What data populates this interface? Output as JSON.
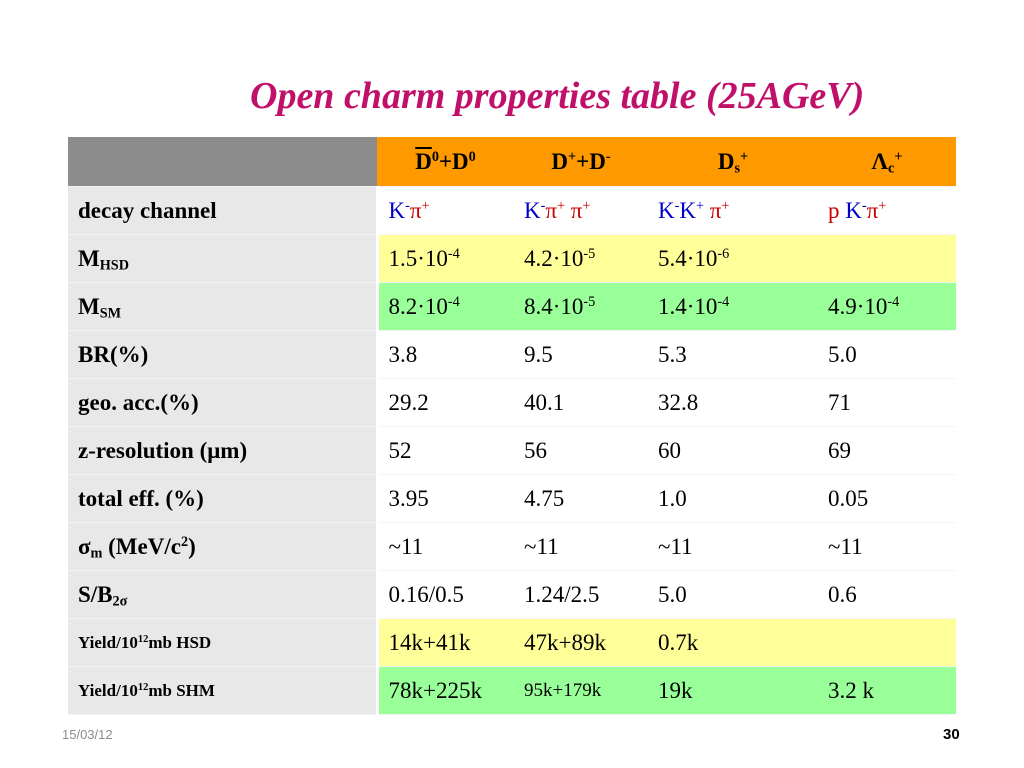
{
  "title": "Open charm properties table (25AGeV)",
  "columns": {
    "d0": {
      "a": "D",
      "sup1": "0",
      "plus": "+D",
      "sup2": "0"
    },
    "dpm": {
      "a": "D",
      "sup1": "+",
      "plus": "+D",
      "sup2": "-"
    },
    "ds": {
      "a": "D",
      "sub": "s",
      "sup": "+"
    },
    "lc": {
      "a": "Λ",
      "sub": "c",
      "sup": "+"
    }
  },
  "rows": {
    "decay": {
      "label": "decay channel",
      "d0": {
        "k": "K",
        "ksup": "-",
        "pi": "π",
        "pisup": "+"
      },
      "dpm": {
        "k": "K",
        "ksup": "-",
        "pi": "π",
        "pisup": "+",
        "pi2": "π",
        "pi2sup": "+"
      },
      "ds": {
        "k": "K",
        "ksup": "-",
        "k2": "K",
        "k2sup": "+",
        "pi": "π",
        "pisup": "+"
      },
      "lc": {
        "p": "p",
        "k": "K",
        "ksup": "-",
        "pi": "π",
        "pisup": "+"
      }
    },
    "mhsd": {
      "label": "M",
      "label_sub": "HSD",
      "d0": {
        "m": "1.5·10",
        "e": "-4"
      },
      "dpm": {
        "m": "4.2·10",
        "e": "-5"
      },
      "ds": {
        "m": "5.4·10",
        "e": "-6"
      }
    },
    "msm": {
      "label": "M",
      "label_sub": "SM",
      "d0": {
        "m": "8.2·10",
        "e": "-4"
      },
      "dpm": {
        "m": "8.4·10",
        "e": "-5"
      },
      "ds": {
        "m": "1.4·10",
        "e": "-4"
      },
      "lc": {
        "m": "4.9·10",
        "e": "-4"
      }
    },
    "br": {
      "label": "BR(%)",
      "d0": "3.8",
      "dpm": "9.5",
      "ds": "5.3",
      "lc": "5.0"
    },
    "geo": {
      "label": "geo. acc.(%)",
      "d0": "29.2",
      "dpm": "40.1",
      "ds": "32.8",
      "lc": "71"
    },
    "zres": {
      "label": "z-resolution (μm)",
      "d0": "52",
      "dpm": "56",
      "ds": "60",
      "lc": "69"
    },
    "eff": {
      "label": "total eff. (%)",
      "d0": "3.95",
      "dpm": "4.75",
      "ds": "1.0",
      "lc": "0.05"
    },
    "sigma": {
      "label_sym": "σ",
      "label_sub": "m",
      "label_rest": " (MeV/c",
      "label_sup": "2",
      "label_close": ")",
      "d0": "~11",
      "dpm": "~11",
      "ds": "~11",
      "lc": "~11"
    },
    "sb": {
      "label": "S/B",
      "label_sub": "2σ",
      "d0": "0.16/0.5",
      "dpm": "1.24/2.5",
      "ds": "5.0",
      "lc": "0.6"
    },
    "yhsd": {
      "label_a": "Yield/10",
      "label_sup": "12",
      "label_b": "mb HSD",
      "d0": "14k+41k",
      "dpm": "47k+89k",
      "ds": "0.7k"
    },
    "yshm": {
      "label_a": "Yield/10",
      "label_sup": "12",
      "label_b": "mb SHM",
      "d0": "78k+225k",
      "dpm": "95k+179k",
      "ds": "19k",
      "lc": "3.2 k"
    }
  },
  "footer": {
    "date": "15/03/12",
    "page": "30"
  },
  "colors": {
    "title": "#c0106a",
    "header": "#ff9900",
    "corner": "#8c8c8c",
    "label_bg": "#e8e8e8",
    "yellow_row": "#ffff99",
    "green_row": "#99ff99",
    "blue_text": "#0000cc",
    "red_text": "#cc0000"
  }
}
